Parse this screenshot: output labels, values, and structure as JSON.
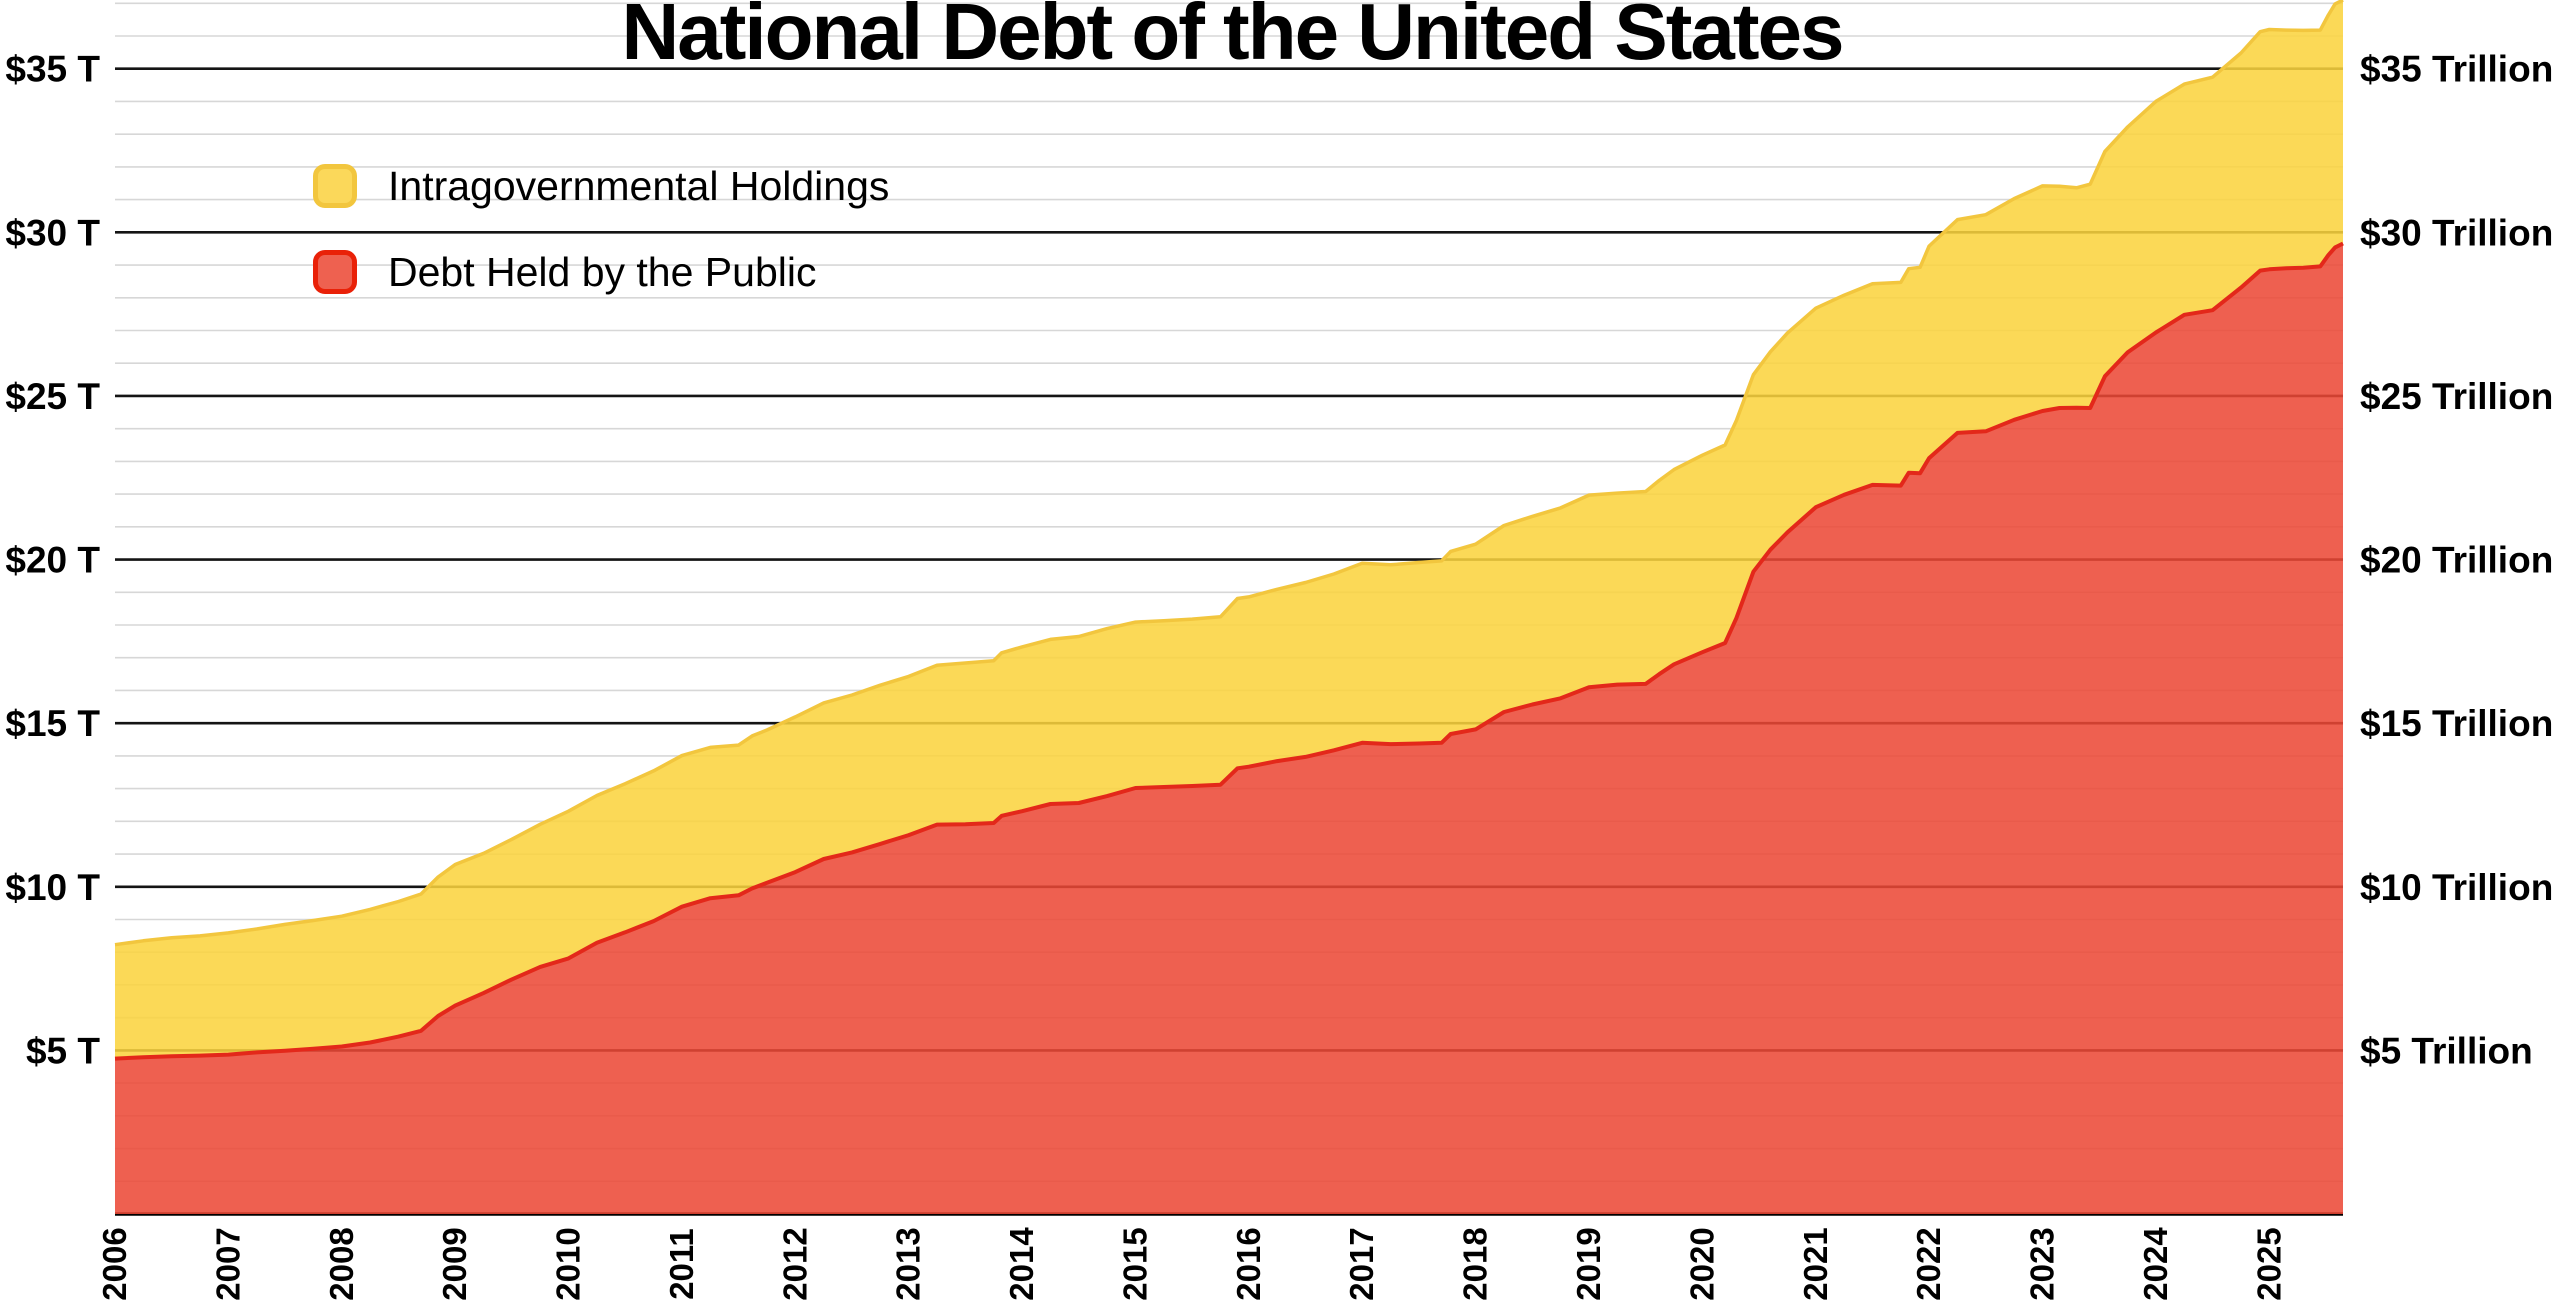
{
  "title": "National Debt of the United States",
  "legend": {
    "items": [
      {
        "label": "Intragovernmental Holdings",
        "fill": "#FBD85A",
        "border": "#F2C63E"
      },
      {
        "label": "Debt Held by the Public",
        "fill": "#EE6150",
        "border": "#E92108"
      }
    ]
  },
  "axes": {
    "y_left_labels": [
      "$5 T",
      "$10 T",
      "$15 T",
      "$20 T",
      "$25 T",
      "$30 T",
      "$35 T"
    ],
    "y_right_labels": [
      "$5 Trillion",
      "$10 Trillion",
      "$15 Trillion",
      "$20 Trillion",
      "$25 Trillion",
      "$30 Trillion",
      "$35 Trillion"
    ],
    "x_labels": [
      "2006",
      "2007",
      "2008",
      "2009",
      "2010",
      "2011",
      "2012",
      "2013",
      "2014",
      "2015",
      "2016",
      "2017",
      "2018",
      "2019",
      "2020",
      "2021",
      "2022",
      "2023",
      "2024",
      "2025"
    ]
  },
  "chart_data": {
    "type": "area",
    "stacked": true,
    "title": "National Debt of the United States",
    "x_unit": "year (decimal)",
    "y_unit": "USD trillions",
    "xlim": [
      2006.0,
      2025.65
    ],
    "ylim": [
      0,
      37.1
    ],
    "y_major_ticks": [
      5,
      10,
      15,
      20,
      25,
      30,
      35
    ],
    "y_minor_step": 1,
    "x_ticks": [
      2006,
      2007,
      2008,
      2009,
      2010,
      2011,
      2012,
      2013,
      2014,
      2015,
      2016,
      2017,
      2018,
      2019,
      2020,
      2021,
      2022,
      2023,
      2024,
      2025
    ],
    "grid": "horizontal major+minor",
    "legend_position": "upper left",
    "x": [
      2006.0,
      2006.25,
      2006.5,
      2006.75,
      2007.0,
      2007.25,
      2007.5,
      2007.75,
      2008.0,
      2008.25,
      2008.5,
      2008.7,
      2008.85,
      2009.0,
      2009.25,
      2009.5,
      2009.75,
      2010.0,
      2010.25,
      2010.5,
      2010.75,
      2011.0,
      2011.25,
      2011.5,
      2011.62,
      2011.75,
      2012.0,
      2012.25,
      2012.5,
      2012.75,
      2013.0,
      2013.25,
      2013.5,
      2013.75,
      2013.82,
      2014.0,
      2014.25,
      2014.5,
      2014.75,
      2015.0,
      2015.25,
      2015.5,
      2015.75,
      2015.9,
      2016.0,
      2016.25,
      2016.5,
      2016.75,
      2017.0,
      2017.25,
      2017.5,
      2017.7,
      2017.78,
      2018.0,
      2018.25,
      2018.5,
      2018.75,
      2019.0,
      2019.25,
      2019.5,
      2019.62,
      2019.75,
      2020.0,
      2020.2,
      2020.3,
      2020.45,
      2020.6,
      2020.75,
      2021.0,
      2021.25,
      2021.5,
      2021.75,
      2021.82,
      2021.92,
      2022.0,
      2022.25,
      2022.5,
      2022.75,
      2023.0,
      2023.15,
      2023.3,
      2023.42,
      2023.55,
      2023.75,
      2024.0,
      2024.25,
      2024.5,
      2024.75,
      2024.92,
      2025.0,
      2025.15,
      2025.3,
      2025.45,
      2025.52,
      2025.58,
      2025.65
    ],
    "series": [
      {
        "name": "Debt Held by the Public",
        "fill": "#EB4836",
        "fill_opacity": 0.87,
        "stroke": "#E3281A",
        "values": [
          4.75,
          4.79,
          4.82,
          4.84,
          4.87,
          4.94,
          4.99,
          5.05,
          5.12,
          5.24,
          5.42,
          5.6,
          6.05,
          6.37,
          6.75,
          7.17,
          7.55,
          7.81,
          8.29,
          8.61,
          8.95,
          9.39,
          9.65,
          9.74,
          9.95,
          10.12,
          10.45,
          10.85,
          11.05,
          11.31,
          11.58,
          11.9,
          11.91,
          11.95,
          12.17,
          12.31,
          12.53,
          12.56,
          12.77,
          13.02,
          13.05,
          13.08,
          13.12,
          13.62,
          13.67,
          13.84,
          13.97,
          14.17,
          14.4,
          14.36,
          14.38,
          14.4,
          14.67,
          14.81,
          15.34,
          15.57,
          15.76,
          16.1,
          16.18,
          16.2,
          16.5,
          16.8,
          17.17,
          17.45,
          18.21,
          19.63,
          20.3,
          20.83,
          21.6,
          21.98,
          22.28,
          22.26,
          22.65,
          22.64,
          23.1,
          23.87,
          23.92,
          24.27,
          24.54,
          24.63,
          24.64,
          24.63,
          25.6,
          26.33,
          26.94,
          27.48,
          27.62,
          28.31,
          28.83,
          28.87,
          28.9,
          28.92,
          28.96,
          29.3,
          29.54,
          29.66
        ]
      },
      {
        "name": "Intragovernmental Holdings",
        "fill": "#FAD33E",
        "fill_opacity": 0.87,
        "stroke": "#F2C63E",
        "values": [
          3.48,
          3.56,
          3.62,
          3.66,
          3.72,
          3.77,
          3.86,
          3.92,
          3.98,
          4.07,
          4.13,
          4.18,
          4.25,
          4.31,
          4.27,
          4.28,
          4.36,
          4.5,
          4.5,
          4.54,
          4.59,
          4.62,
          4.61,
          4.59,
          4.66,
          4.67,
          4.74,
          4.77,
          4.81,
          4.85,
          4.85,
          4.87,
          4.93,
          4.96,
          4.98,
          5.02,
          5.03,
          5.09,
          5.12,
          5.07,
          5.08,
          5.1,
          5.13,
          5.19,
          5.19,
          5.25,
          5.33,
          5.39,
          5.49,
          5.48,
          5.53,
          5.56,
          5.58,
          5.66,
          5.7,
          5.75,
          5.82,
          5.87,
          5.85,
          5.88,
          5.92,
          5.95,
          6.02,
          6.05,
          6.04,
          6.02,
          6.05,
          6.09,
          6.08,
          6.1,
          6.15,
          6.21,
          6.24,
          6.29,
          6.48,
          6.52,
          6.62,
          6.76,
          6.88,
          6.78,
          6.72,
          6.84,
          6.87,
          6.89,
          7.06,
          7.05,
          7.12,
          7.17,
          7.3,
          7.33,
          7.28,
          7.25,
          7.22,
          7.34,
          7.44,
          7.44
        ]
      }
    ]
  }
}
